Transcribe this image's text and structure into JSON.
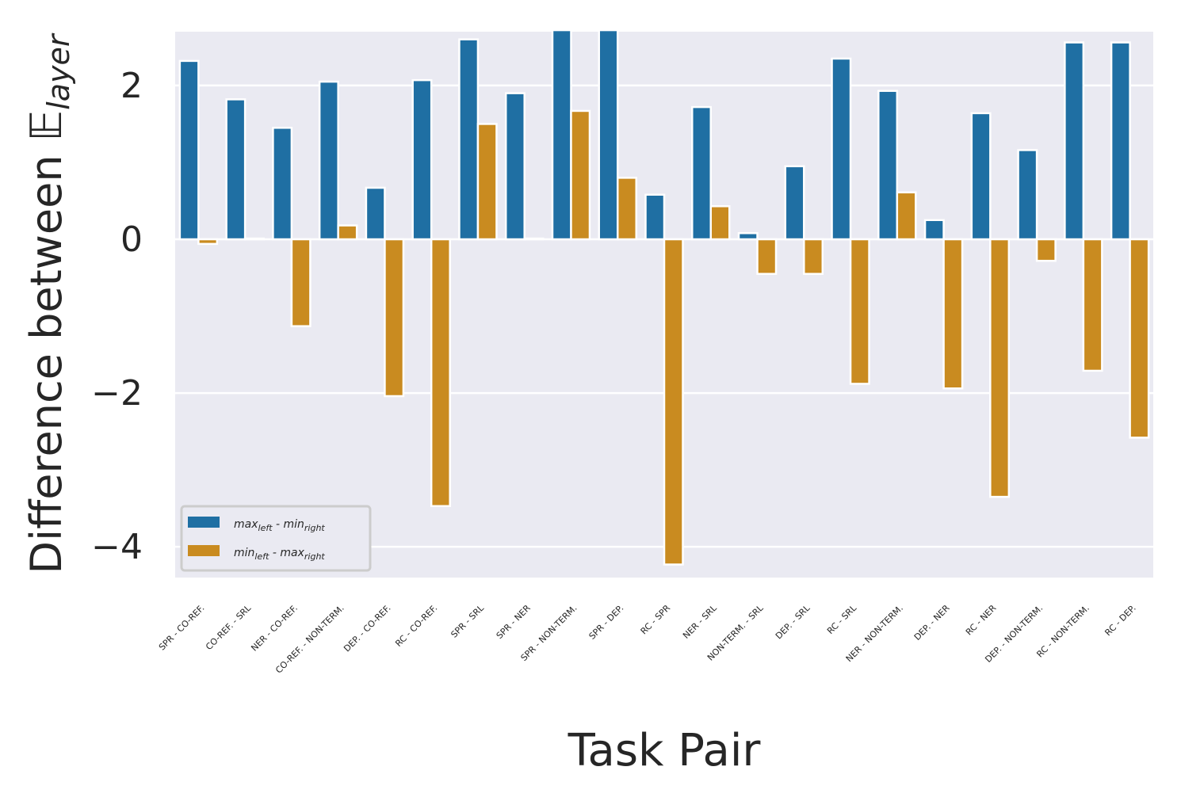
{
  "chart_data": {
    "type": "bar",
    "xlabel": "Task Pair",
    "ylabel_main": "Difference between ",
    "ylabel_symbol": "𝔼",
    "ylabel_sub": "layer",
    "ylim": [
      -4.4,
      2.7
    ],
    "yticks": [
      {
        "value": 2,
        "label": "2"
      },
      {
        "value": 0,
        "label": "0"
      },
      {
        "value": -2,
        "label": "−2"
      },
      {
        "value": -4,
        "label": "−4"
      }
    ],
    "grid": true,
    "legend_position": "lower-left",
    "categories": [
      "SPR - CO-REF.",
      "CO-REF. - SRL",
      "NER - CO-REF.",
      "CO-REF. - NON-TERM.",
      "DEP. - CO-REF.",
      "RC - CO-REF.",
      "SPR - SRL",
      "SPR - NER",
      "SPR - NON-TERM.",
      "SPR - DEP.",
      "RC - SPR",
      "NER - SRL",
      "NON-TERM. - SRL",
      "DEP. - SRL",
      "RC - SRL",
      "NER - NON-TERM.",
      "DEP. - NER",
      "RC - NER",
      "DEP. - NON-TERM.",
      "RC - NON-TERM.",
      "RC - DEP."
    ],
    "series": [
      {
        "name": "max_left - min_right",
        "legend": {
          "a": "max",
          "a_sub": "left",
          "sep": " - ",
          "b": "min",
          "b_sub": "right"
        },
        "color": "#1f6fa3",
        "values": [
          2.32,
          1.82,
          1.45,
          2.05,
          0.67,
          2.07,
          2.6,
          1.9,
          2.72,
          2.72,
          0.58,
          1.72,
          0.08,
          0.95,
          2.35,
          1.93,
          0.25,
          1.64,
          1.16,
          2.56,
          2.56
        ]
      },
      {
        "name": "min_left - max_right",
        "legend": {
          "a": "min",
          "a_sub": "left",
          "sep": " - ",
          "b": "max",
          "b_sub": "right"
        },
        "color": "#c98b20",
        "values": [
          -0.06,
          0.01,
          -1.13,
          0.18,
          -2.04,
          -3.47,
          1.5,
          0.01,
          1.67,
          0.8,
          -4.23,
          0.43,
          -0.45,
          -0.45,
          -1.88,
          0.61,
          -1.94,
          -3.35,
          -0.28,
          -1.71,
          -2.58
        ]
      }
    ]
  }
}
